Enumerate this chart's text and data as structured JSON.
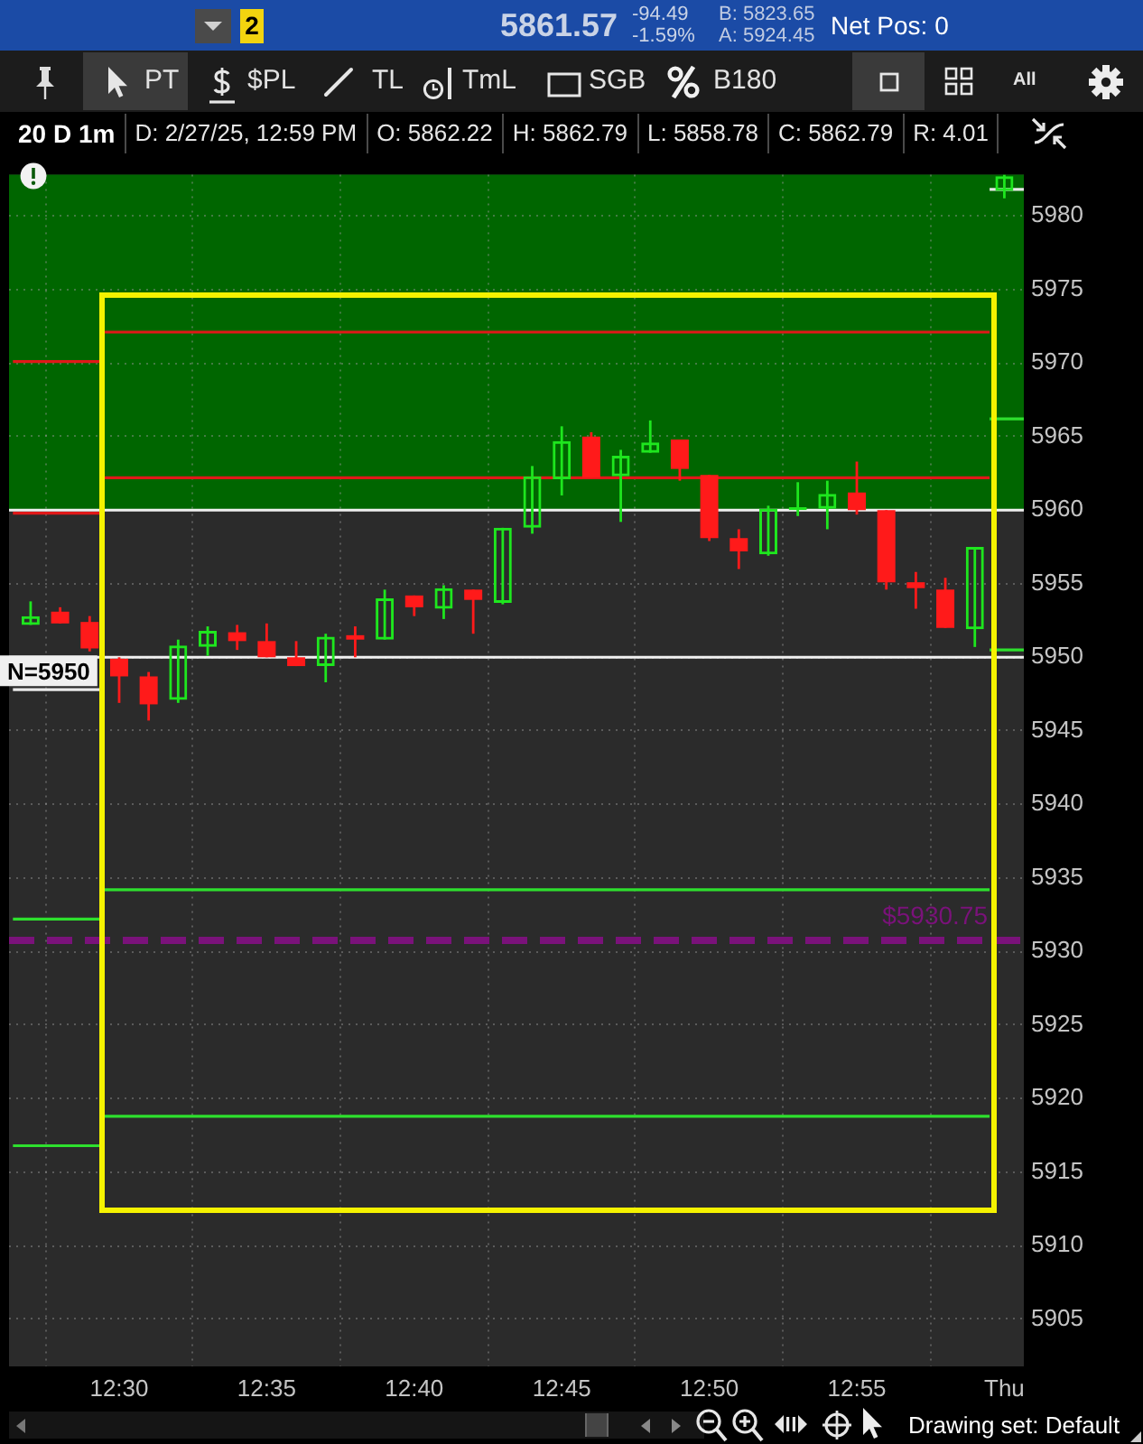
{
  "chart_data": {
    "type": "candlestick",
    "title": "20 D 1m",
    "x": [
      12.45,
      12.466667,
      12.483333,
      12.5,
      12.516667,
      12.533333,
      12.55,
      12.566667,
      12.583333,
      12.6,
      12.616667,
      12.633333,
      12.65,
      12.666667,
      12.683333,
      12.7,
      12.716667,
      12.733333,
      12.75,
      12.766667,
      12.783333,
      12.8,
      12.816667,
      12.833333,
      12.85,
      12.866667,
      12.883333,
      12.9,
      12.916667,
      12.933333,
      12.95,
      12.966667,
      12.983333,
      13.0
    ],
    "ohlc": [
      [
        5952.2,
        5953.8,
        5952.2,
        5952.8
      ],
      [
        5953.1,
        5953.4,
        5952.3,
        5952.3
      ],
      [
        5952.4,
        5952.8,
        5950.4,
        5950.6
      ],
      [
        5949.9,
        5950.0,
        5946.9,
        5948.7
      ],
      [
        5948.7,
        5949.0,
        5945.7,
        5946.8
      ],
      [
        5947.1,
        5951.2,
        5946.9,
        5950.8
      ],
      [
        5950.7,
        5952.1,
        5950.1,
        5951.8
      ],
      [
        5951.7,
        5952.2,
        5950.5,
        5951.1
      ],
      [
        5951.1,
        5952.3,
        5950.0,
        5950.0
      ],
      [
        5950.0,
        5951.1,
        5949.4,
        5949.4
      ],
      [
        5949.4,
        5951.6,
        5948.3,
        5951.4
      ],
      [
        5951.5,
        5952.1,
        5950.0,
        5951.2
      ],
      [
        5951.2,
        5954.6,
        5951.2,
        5954.0
      ],
      [
        5954.2,
        5954.2,
        5952.8,
        5953.4
      ],
      [
        5953.3,
        5954.9,
        5952.6,
        5954.7
      ],
      [
        5954.6,
        5954.6,
        5951.6,
        5953.9
      ],
      [
        5953.7,
        5958.8,
        5953.6,
        5958.8
      ],
      [
        5958.8,
        5963.0,
        5958.4,
        5962.3
      ],
      [
        5962.1,
        5965.7,
        5961.0,
        5964.7
      ],
      [
        5965.0,
        5965.3,
        5962.2,
        5962.2
      ],
      [
        5962.3,
        5964.1,
        5959.2,
        5963.7
      ],
      [
        5963.9,
        5966.1,
        5963.9,
        5964.6
      ],
      [
        5964.8,
        5964.8,
        5962.0,
        5962.8
      ],
      [
        5962.4,
        5962.4,
        5957.9,
        5958.1
      ],
      [
        5958.1,
        5958.7,
        5956.0,
        5957.2
      ],
      [
        5957.0,
        5960.3,
        5956.9,
        5960.1
      ],
      [
        5960.0,
        5961.9,
        5959.6,
        5960.2
      ],
      [
        5960.1,
        5962.0,
        5958.7,
        5961.1
      ],
      [
        5961.2,
        5963.3,
        5959.7,
        5960.0
      ],
      [
        5960.0,
        5960.0,
        5954.6,
        5955.1
      ],
      [
        5955.1,
        5955.8,
        5953.3,
        5954.7
      ],
      [
        5954.6,
        5955.4,
        5952.0,
        5952.0
      ],
      [
        5951.9,
        5957.5,
        5950.7,
        5957.5
      ],
      [
        5981.7,
        5982.8,
        5981.2,
        5982.7
      ]
    ],
    "colors": [
      "#1ee61e",
      "#ff1a1a",
      "#ff1a1a",
      "#ff1a1a",
      "#ff1a1a",
      "#1ee61e",
      "#1ee61e",
      "#ff1a1a",
      "#ff1a1a",
      "#ff1a1a",
      "#1ee61e",
      "#ff1a1a",
      "#1ee61e",
      "#ff1a1a",
      "#1ee61e",
      "#ff1a1a",
      "#1ee61e",
      "#1ee61e",
      "#1ee61e",
      "#ff1a1a",
      "#1ee61e",
      "#1ee61e",
      "#ff1a1a",
      "#ff1a1a",
      "#ff1a1a",
      "#1ee61e",
      "#1ee61e",
      "#1ee61e",
      "#ff1a1a",
      "#ff1a1a",
      "#ff1a1a",
      "#ff1a1a",
      "#1ee61e",
      "#1ee61e"
    ],
    "series": [
      {
        "type": "line",
        "x": [
          12.44,
          12.491667
        ],
        "values": [
          5970.1,
          5970.1
        ],
        "color": "#e01818"
      },
      {
        "type": "line",
        "x": [
          12.44,
          12.491667
        ],
        "values": [
          5959.8,
          5959.8
        ],
        "color": "#e01818"
      },
      {
        "type": "line",
        "x": [
          12.44,
          12.491667
        ],
        "values": [
          5947.8,
          5947.8
        ],
        "color": "#e8e8e8"
      },
      {
        "type": "line",
        "x": [
          12.44,
          12.491667
        ],
        "values": [
          5932.2,
          5932.2
        ],
        "color": "#2ee02e"
      },
      {
        "type": "line",
        "x": [
          12.44,
          12.491667
        ],
        "values": [
          5916.8,
          5916.8
        ],
        "color": "#2ee02e"
      },
      {
        "type": "line",
        "x": [
          12.491667,
          12.991667
        ],
        "values": [
          5972.1,
          5972.1
        ],
        "color": "#e01818"
      },
      {
        "type": "line",
        "x": [
          12.491667,
          12.991667
        ],
        "values": [
          5962.2,
          5962.2
        ],
        "color": "#e01818"
      },
      {
        "type": "line",
        "x": [
          12.491667,
          12.991667
        ],
        "values": [
          5934.2,
          5934.2
        ],
        "color": "#2ee02e"
      },
      {
        "type": "line",
        "x": [
          12.491667,
          12.991667
        ],
        "values": [
          5918.8,
          5918.8
        ],
        "color": "#2ee02e"
      },
      {
        "type": "line",
        "x": [
          12.991667,
          13.011
        ],
        "values": [
          5981.8,
          5981.8
        ],
        "color": "#e8e8e8"
      },
      {
        "type": "line",
        "x": [
          12.991667,
          13.011
        ],
        "values": [
          5966.2,
          5966.2
        ],
        "color": "#2ee02e"
      },
      {
        "type": "line",
        "x": [
          12.991667,
          13.011
        ],
        "values": [
          5950.5,
          5950.5
        ],
        "color": "#2ee02e"
      }
    ],
    "xlim": [
      12.4378,
      13.011
    ],
    "xticks": [
      {
        "value": 12.5,
        "label": "12:30"
      },
      {
        "value": 12.583333,
        "label": "12:35"
      },
      {
        "value": 12.666667,
        "label": "12:40"
      },
      {
        "value": 12.75,
        "label": "12:45"
      },
      {
        "value": 12.833333,
        "label": "12:50"
      },
      {
        "value": 12.916667,
        "label": "12:55"
      },
      {
        "value": 13.0,
        "label": "Thu"
      }
    ],
    "ylim": [
      5901.8,
      5982.8
    ],
    "yticks": [
      5905,
      5910,
      5915,
      5920,
      5925,
      5930,
      5935,
      5940,
      5945,
      5950,
      5955,
      5960,
      5965,
      5970,
      5975,
      5980
    ],
    "grid": true,
    "bands": [
      {
        "axis": "y",
        "from": 5960,
        "to": 5982.8,
        "color": "#006600"
      }
    ],
    "ref_lines": [
      {
        "axis": "y",
        "value": 5960,
        "color": "#f0f0f0"
      },
      {
        "axis": "y",
        "value": 5950,
        "label": "N=5950",
        "color": "#f0f0f0"
      },
      {
        "axis": "y",
        "value": 5930.75,
        "label": "$5930.75",
        "color": "#7a127a",
        "line_style": "dashed"
      }
    ],
    "annotations": [
      "2",
      "5861.57",
      "-94.49",
      "-1.59%",
      "B: 5823.65",
      "A: 5924.45",
      "Net Pos: 0",
      "PT",
      "$PL",
      "TL",
      "TmL",
      "SGB",
      "B180",
      "All",
      "D: 2/27/25, 12:59 PM",
      "O: 5862.22",
      "H: 5862.79",
      "L: 5858.78",
      "C: 5862.79",
      "R: 4.01",
      "Drawing set: Default"
    ]
  }
}
